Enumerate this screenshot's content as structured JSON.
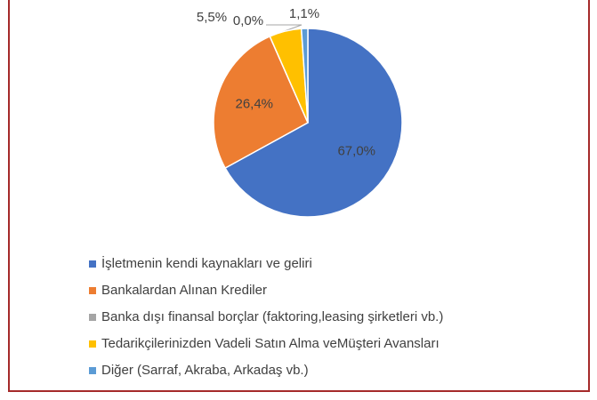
{
  "chart_data": {
    "type": "pie",
    "categories": [
      "İşletmenin kendi kaynakları ve geliri",
      "Bankalardan Alınan Krediler",
      "Banka dışı finansal borçlar (faktoring,leasing şirketleri vb.)",
      "Tedarikçilerinizden Vadeli Satın Alma veMüşteri Avansları",
      "Diğer (Sarraf, Akraba, Arkadaş vb.)"
    ],
    "values": [
      67.0,
      26.4,
      0.0,
      5.5,
      1.1
    ],
    "value_labels": [
      "67,0%",
      "26,4%",
      "0,0%",
      "5,5%",
      "1,1%"
    ],
    "colors": [
      "#4472c4",
      "#ed7d31",
      "#a5a5a5",
      "#ffc000",
      "#5b9bd5"
    ],
    "legend": "bottom"
  }
}
